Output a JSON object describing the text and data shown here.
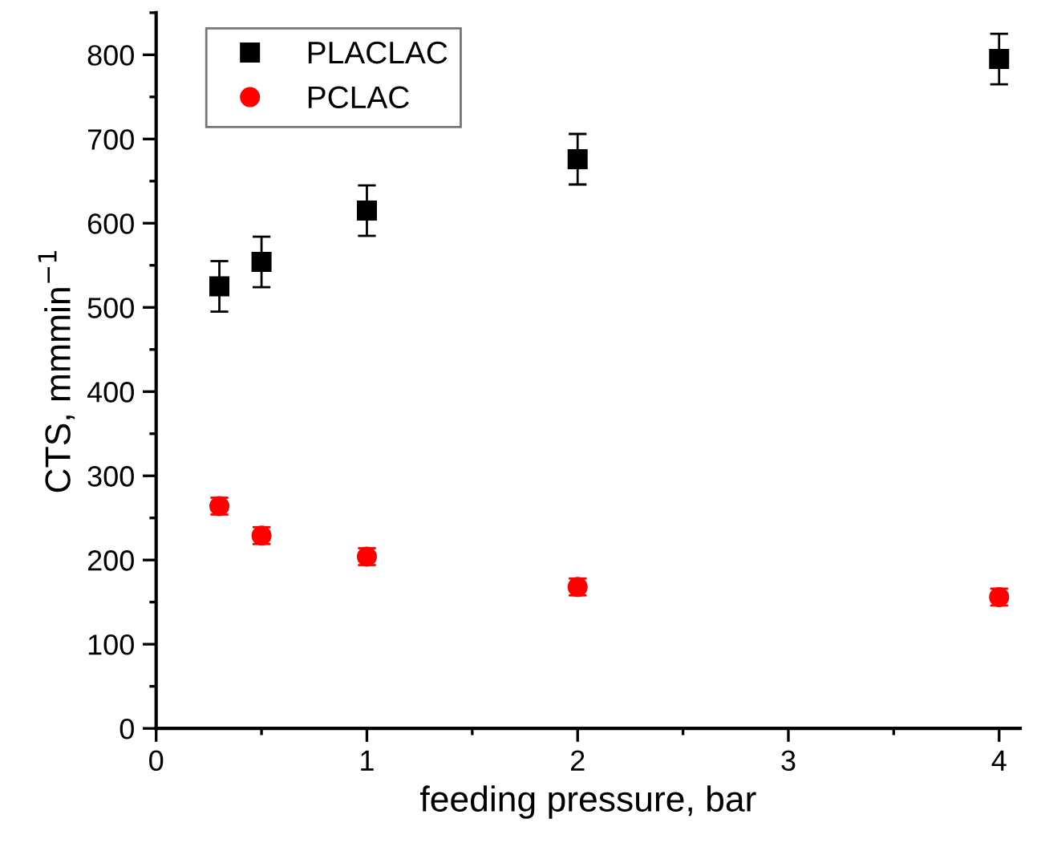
{
  "chart_data": {
    "type": "scatter",
    "xlabel": "feeding pressure, bar",
    "ylabel": "CTS, mmmin$^{−1}$",
    "x": [
      0.3,
      0.5,
      1,
      2,
      4
    ],
    "series": [
      {
        "name": "PLACLAC",
        "color": "#000000",
        "marker": "square",
        "values": [
          525,
          554,
          615,
          676,
          795
        ],
        "errors": [
          30,
          30,
          30,
          30,
          30
        ]
      },
      {
        "name": "PCLAC",
        "color": "#ff0000",
        "marker": "circle",
        "values": [
          264,
          229,
          204,
          168,
          156
        ],
        "errors": [
          10,
          10,
          10,
          10,
          10
        ]
      }
    ],
    "xlim": [
      0,
      4.1
    ],
    "xticks": [
      0,
      1,
      2,
      3,
      4
    ],
    "ylim": [
      0,
      850
    ],
    "yticks": [
      0,
      100,
      200,
      300,
      400,
      500,
      600,
      700,
      800
    ],
    "grid": false,
    "legend": "top left"
  }
}
